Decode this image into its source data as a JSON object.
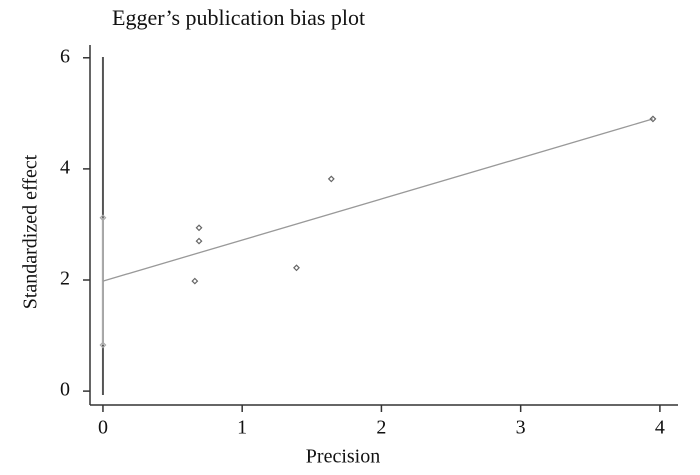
{
  "chart_data": {
    "type": "scatter",
    "title": "Egger’s publication bias plot",
    "x_label": "Precision",
    "y_label": "Standardized effect",
    "points": {
      "color": "#666666",
      "x": [
        0.66,
        0.69,
        0.69,
        1.39,
        1.64,
        3.95
      ],
      "y": [
        1.98,
        2.7,
        2.94,
        2.22,
        3.82,
        4.9
      ]
    },
    "fit": {
      "color": "#999999",
      "x": [
        0,
        3.95
      ],
      "y": [
        1.98,
        4.9
      ]
    },
    "ci": {
      "color": "#aaaaaa",
      "x": [
        0,
        0
      ],
      "y": [
        0.83,
        3.12
      ]
    },
    "xlim": [
      -0.093,
      4.13
    ],
    "ylim": [
      -0.25,
      6.23
    ],
    "xticks": [
      0,
      1,
      2,
      3,
      4
    ],
    "yticks": [
      0,
      2,
      4,
      6
    ]
  }
}
